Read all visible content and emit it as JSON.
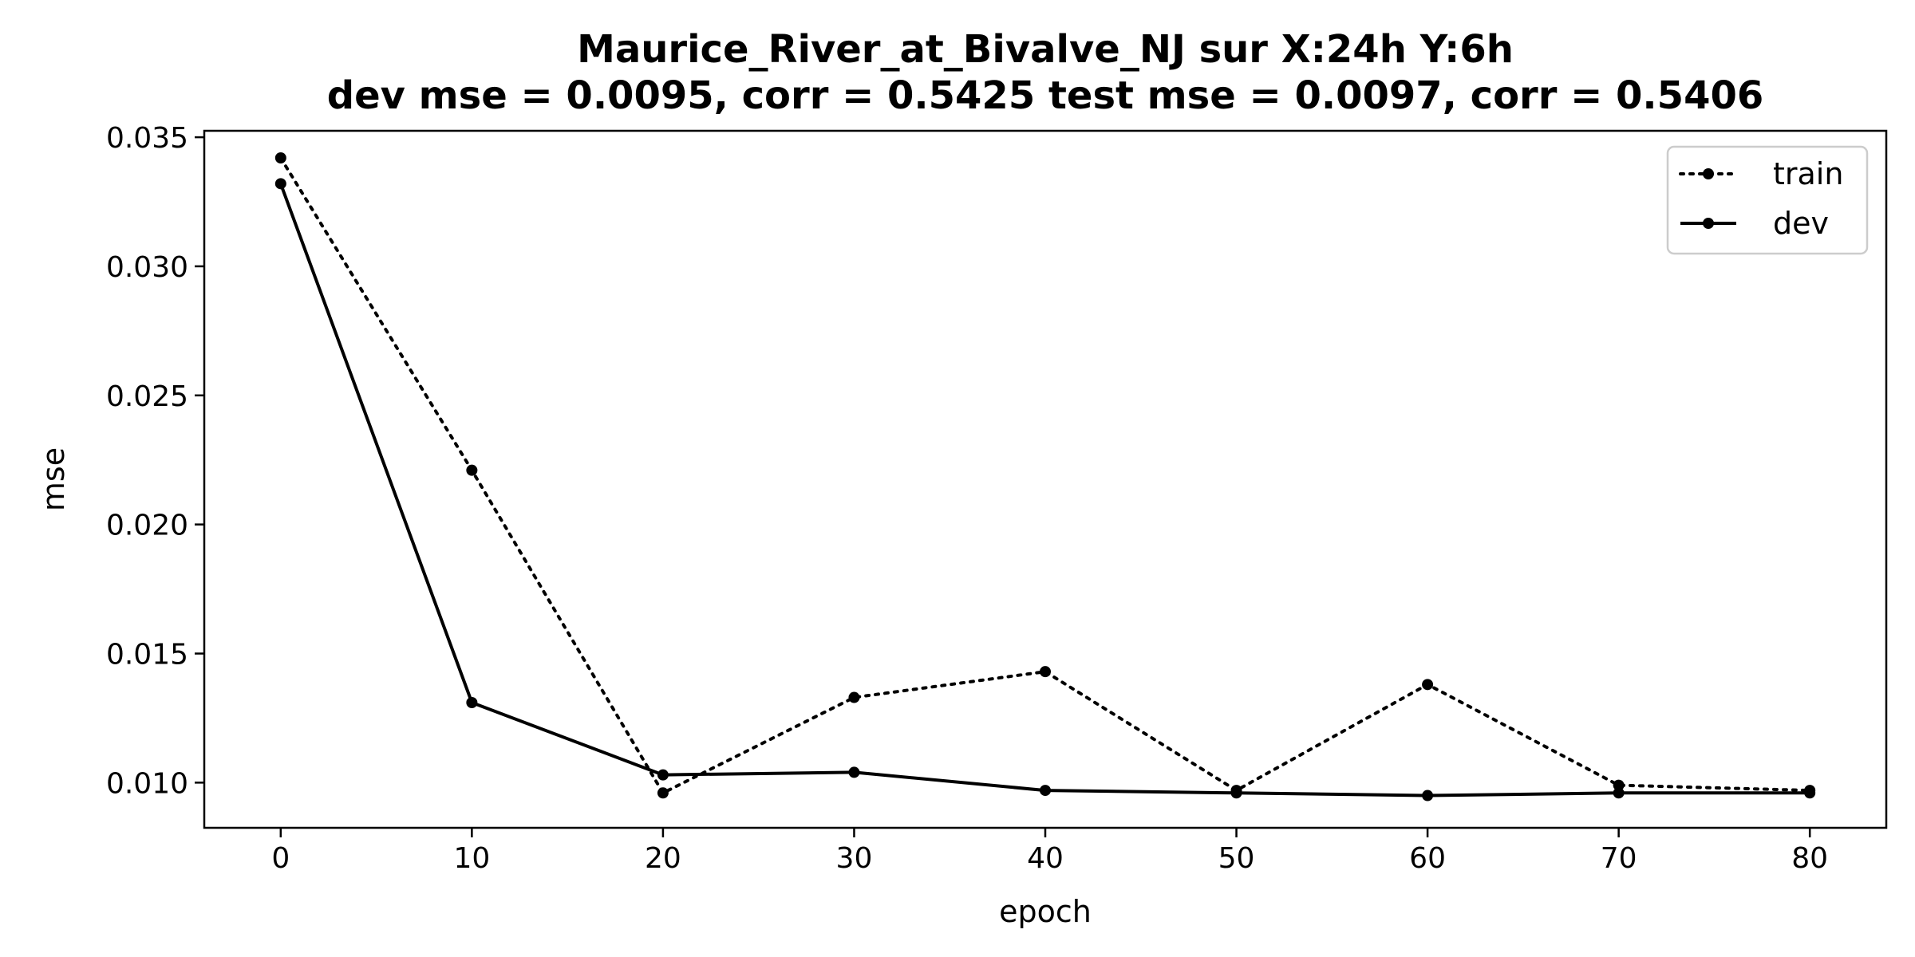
{
  "chart_data": {
    "type": "line",
    "title": "Maurice_River_at_Bivalve_NJ   sur   X:24h   Y:6h",
    "subtitle": "dev mse = 0.0095, corr = 0.5425   test mse = 0.0097, corr = 0.5406",
    "xlabel": "epoch",
    "ylabel": "mse",
    "x": [
      0,
      10,
      20,
      30,
      40,
      50,
      60,
      70,
      80
    ],
    "xlim": [
      -4,
      84
    ],
    "ylim": [
      0.00825,
      0.03525
    ],
    "xticks": [
      0,
      10,
      20,
      30,
      40,
      50,
      60,
      70,
      80
    ],
    "xtick_labels": [
      "0",
      "10",
      "20",
      "30",
      "40",
      "50",
      "60",
      "70",
      "80"
    ],
    "yticks": [
      0.01,
      0.015,
      0.02,
      0.025,
      0.03,
      0.035
    ],
    "ytick_labels": [
      "0.010",
      "0.015",
      "0.020",
      "0.025",
      "0.030",
      "0.035"
    ],
    "grid": false,
    "legend_position": "top-right",
    "color": "#000000",
    "series": [
      {
        "name": "train",
        "style": "dotted",
        "values": [
          0.0342,
          0.0221,
          0.0096,
          0.0133,
          0.0143,
          0.0097,
          0.0138,
          0.0099,
          0.0097
        ]
      },
      {
        "name": "dev",
        "style": "solid",
        "values": [
          0.0332,
          0.0131,
          0.0103,
          0.0104,
          0.0097,
          0.0096,
          0.0095,
          0.0096,
          0.0096
        ]
      }
    ]
  }
}
